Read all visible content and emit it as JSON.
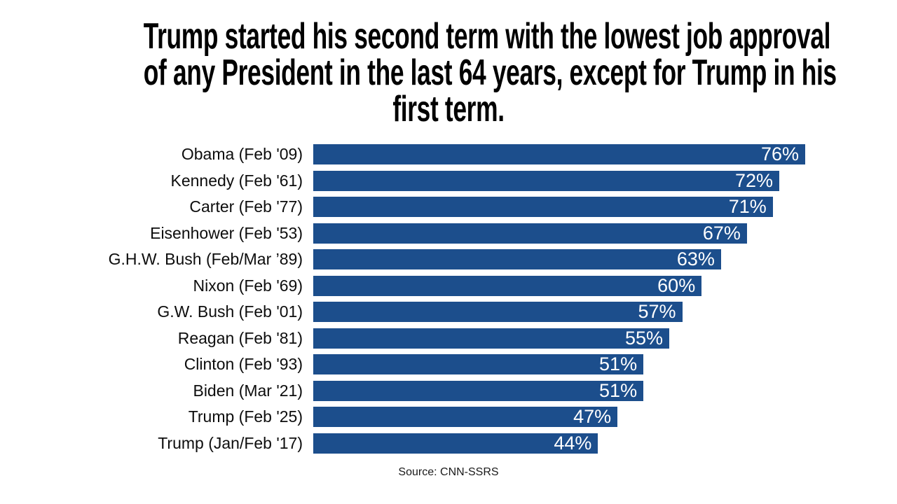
{
  "title": {
    "lines": [
      "Trump started his second term with the lowest job approval",
      "of any President in the last 64 years, except for Trump in his",
      "first term."
    ]
  },
  "chart_data": {
    "type": "bar",
    "orientation": "horizontal",
    "title": "Trump started his second term with the lowest job approval of any President in the last 64 years, except for Trump in his first term.",
    "categories": [
      "Obama (Feb '09)",
      "Kennedy (Feb '61)",
      "Carter (Feb '77)",
      "Eisenhower (Feb '53)",
      "G.H.W. Bush (Feb/Mar ’89)",
      "Nixon (Feb '69)",
      "G.W. Bush (Feb '01)",
      "Reagan (Feb '81)",
      "Clinton (Feb '93)",
      "Biden (Mar '21)",
      "Trump (Feb '25)",
      "Trump (Jan/Feb '17)"
    ],
    "values": [
      76,
      72,
      71,
      67,
      63,
      60,
      57,
      55,
      51,
      51,
      47,
      44
    ],
    "value_suffix": "%",
    "xlabel": "",
    "ylabel": "",
    "xmax": 76,
    "grid": false,
    "legend": false,
    "bar_color": "#1c4e8c",
    "value_label_color": "#ffffff",
    "value_labels_inside": true
  },
  "source": {
    "label": "Source: CNN-SSRS"
  }
}
